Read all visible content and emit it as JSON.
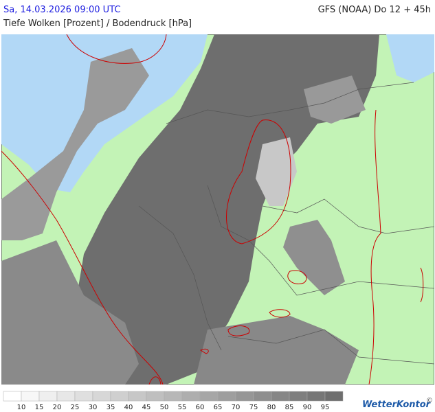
{
  "header": {
    "datetime": "Sa, 14.03.2026 09:00 UTC",
    "model": "GFS (NOAA) Do 12 + 45h",
    "subtitle": "Tiefe Wolken [Prozent] / Bodendruck [hPa]"
  },
  "legend": {
    "labels": [
      10,
      15,
      20,
      25,
      30,
      35,
      40,
      45,
      50,
      55,
      60,
      65,
      70,
      75,
      80,
      85,
      90,
      95
    ]
  },
  "logo": {
    "text": "WetterKontor"
  },
  "copyright": "©"
}
